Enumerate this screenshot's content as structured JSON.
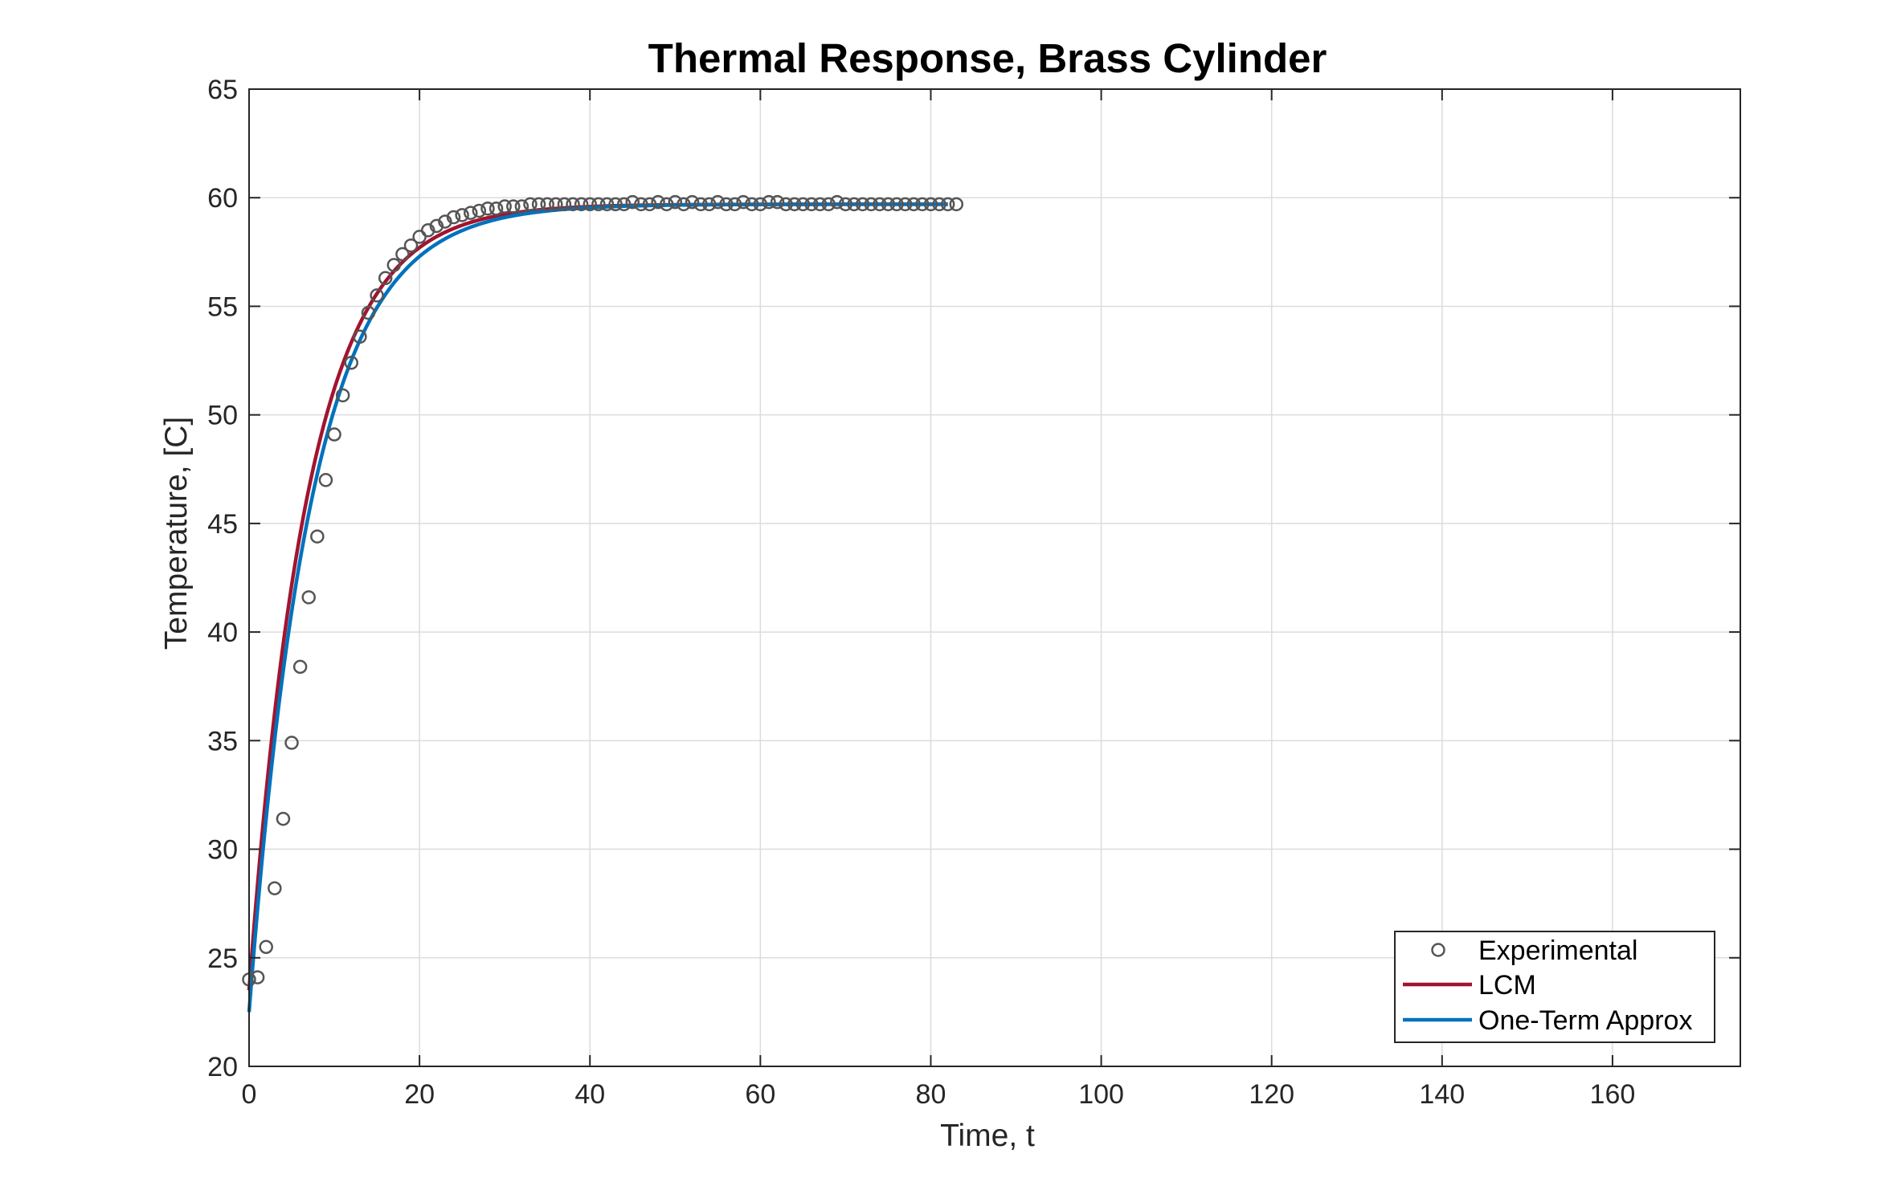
{
  "chart_data": {
    "type": "line",
    "title": "Thermal Response, Brass Cylinder",
    "xlabel": "Time, t",
    "ylabel": "Temperature, [C]",
    "xlim": [
      0,
      175
    ],
    "ylim": [
      20,
      65
    ],
    "xticks": [
      0,
      20,
      40,
      60,
      80,
      100,
      120,
      140,
      160
    ],
    "yticks": [
      20,
      25,
      30,
      35,
      40,
      45,
      50,
      55,
      60,
      65
    ],
    "xtick_labels": [
      "0",
      "20",
      "40",
      "60",
      "80",
      "100",
      "120",
      "140",
      "160"
    ],
    "ytick_labels": [
      "20",
      "25",
      "30",
      "35",
      "40",
      "45",
      "50",
      "55",
      "60",
      "65"
    ],
    "grid": true,
    "legend_position": "bottom-right",
    "series": [
      {
        "name": "Experimental",
        "style": "markers",
        "marker": "circle",
        "color": "#555555",
        "x": [
          0,
          1,
          2,
          3,
          4,
          5,
          6,
          7,
          8,
          9,
          10,
          11,
          12,
          13,
          14,
          15,
          16,
          17,
          18,
          19,
          20,
          21,
          22,
          23,
          24,
          25,
          26,
          27,
          28,
          29,
          30,
          31,
          32,
          33,
          34,
          35,
          36,
          37,
          38,
          39,
          40,
          41,
          42,
          43,
          44,
          45,
          46,
          47,
          48,
          49,
          50,
          51,
          52,
          53,
          54,
          55,
          56,
          57,
          58,
          59,
          60,
          61,
          62,
          63,
          64,
          65,
          66,
          67,
          68,
          69,
          70,
          71,
          72,
          73,
          74,
          75,
          76,
          77,
          78,
          79,
          80,
          81,
          82,
          83
        ],
        "y": [
          24.0,
          24.1,
          25.5,
          28.2,
          31.4,
          34.9,
          38.4,
          41.6,
          44.4,
          47.0,
          49.1,
          50.9,
          52.4,
          53.6,
          54.7,
          55.5,
          56.3,
          56.9,
          57.4,
          57.8,
          58.2,
          58.5,
          58.7,
          58.9,
          59.1,
          59.2,
          59.3,
          59.4,
          59.5,
          59.5,
          59.6,
          59.6,
          59.6,
          59.7,
          59.7,
          59.7,
          59.7,
          59.7,
          59.7,
          59.7,
          59.7,
          59.7,
          59.7,
          59.7,
          59.7,
          59.8,
          59.7,
          59.7,
          59.8,
          59.7,
          59.8,
          59.7,
          59.8,
          59.7,
          59.7,
          59.8,
          59.7,
          59.7,
          59.8,
          59.7,
          59.7,
          59.8,
          59.8,
          59.7,
          59.7,
          59.7,
          59.7,
          59.7,
          59.7,
          59.8,
          59.7,
          59.7,
          59.7,
          59.7,
          59.7,
          59.7,
          59.7,
          59.7,
          59.7,
          59.7,
          59.7,
          59.7,
          59.7,
          59.7
        ]
      },
      {
        "name": "LCM",
        "style": "line",
        "color": "#A2142F",
        "model": "exponential",
        "t_range": [
          0,
          82
        ],
        "T_initial": 23.5,
        "T_final": 59.7,
        "time_constant": 6.9
      },
      {
        "name": "One-Term Approx",
        "style": "line",
        "color": "#0072BD",
        "model": "exponential",
        "t_range": [
          0,
          82
        ],
        "T_initial": 22.5,
        "T_final": 59.7,
        "time_constant": 7.3
      }
    ]
  }
}
